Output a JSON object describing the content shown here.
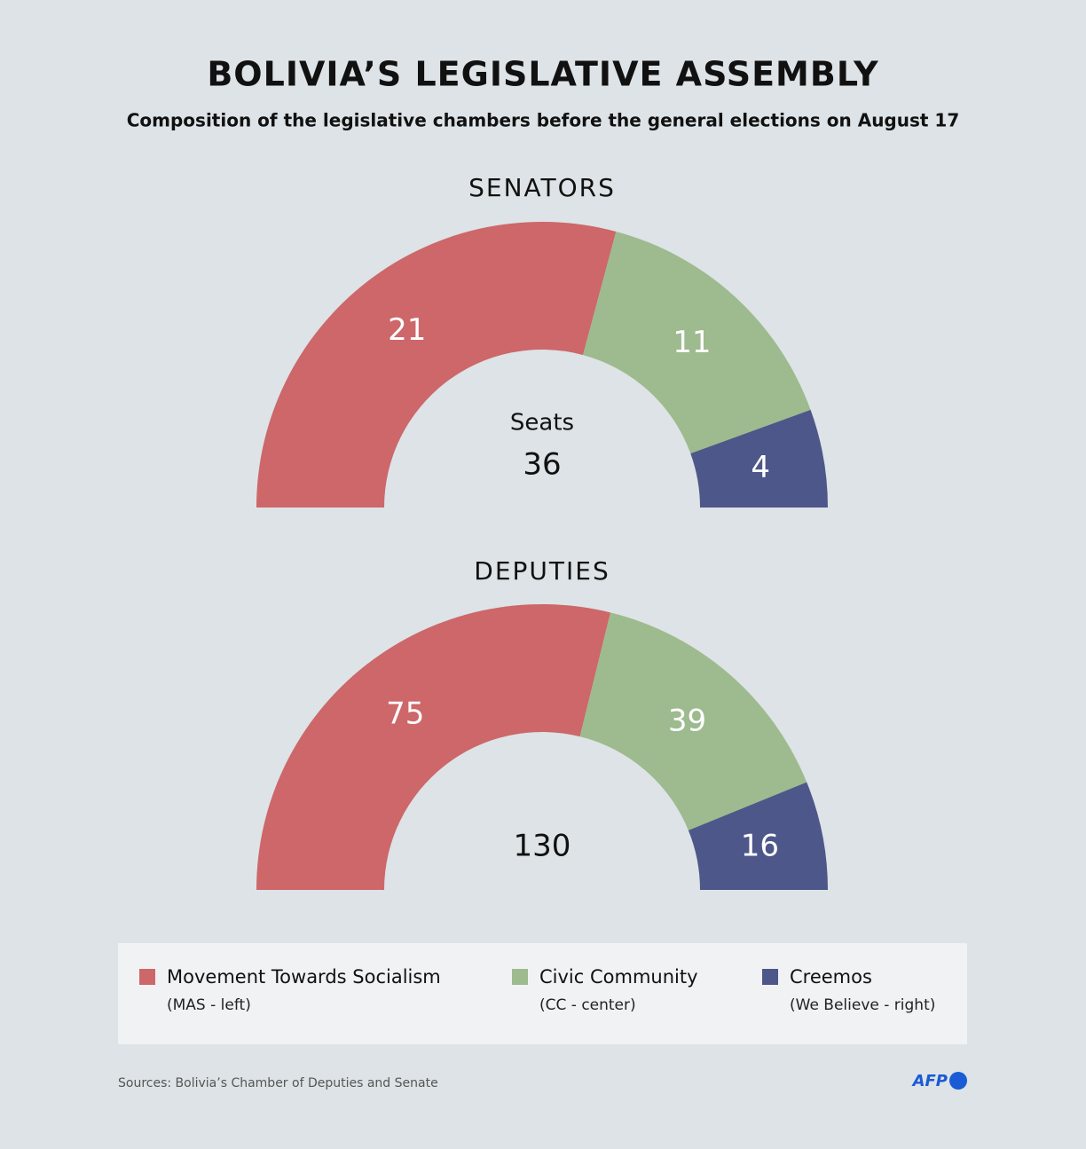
{
  "header": {
    "title": "BOLIVIA’S LEGISLATIVE ASSEMBLY",
    "subtitle": "Composition of the legislative chambers before the general elections on August 17"
  },
  "chart_data": [
    {
      "type": "half-donut",
      "title": "SENATORS",
      "center_label": "Seats",
      "total": 36,
      "values": [
        21,
        11,
        4
      ]
    },
    {
      "type": "half-donut",
      "title": "DEPUTIES",
      "total": 130,
      "values": [
        75,
        39,
        16
      ]
    }
  ],
  "legend": [
    {
      "name": "Movement Towards Socialism",
      "note": "(MAS - left)",
      "color": "#cd6769"
    },
    {
      "name": "Civic Community",
      "note": "(CC - center)",
      "color": "#9dbb8e"
    },
    {
      "name": "Creemos",
      "note": "(We Believe - right)",
      "color": "#4e5789"
    }
  ],
  "footer": {
    "source": "Sources: Bolivia’s Chamber of Deputies and Senate",
    "logo": "AFP"
  }
}
